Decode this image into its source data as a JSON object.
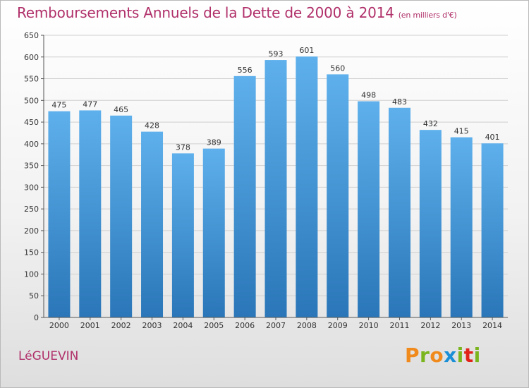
{
  "chart_data": {
    "type": "bar",
    "title": "Remboursements Annuels de la Dette de 2000 à 2014",
    "subtitle": "(en milliers d'€)",
    "categories": [
      "2000",
      "2001",
      "2002",
      "2003",
      "2004",
      "2005",
      "2006",
      "2007",
      "2008",
      "2009",
      "2010",
      "2011",
      "2012",
      "2013",
      "2014"
    ],
    "values": [
      475,
      477,
      465,
      428,
      378,
      389,
      556,
      593,
      601,
      560,
      498,
      483,
      432,
      415,
      401
    ],
    "ylim": [
      0,
      650
    ],
    "yticks": [
      0,
      50,
      100,
      150,
      200,
      250,
      300,
      350,
      400,
      450,
      500,
      550,
      600,
      650
    ],
    "xlabel": "",
    "ylabel": "",
    "grid": true
  },
  "footer": {
    "city": "LéGUEVIN",
    "logo_letters": [
      "P",
      "r",
      "o",
      "x",
      "i",
      "t",
      "i"
    ]
  },
  "colors": {
    "bar_light": "#5eb0ec",
    "bar_dark": "#2a76b8",
    "title": "#b0306a",
    "logo": [
      "#f08a1c",
      "#7ab51d",
      "#f08a1c",
      "#1a8fd6",
      "#7ab51d",
      "#e2231a",
      "#7ab51d"
    ]
  }
}
